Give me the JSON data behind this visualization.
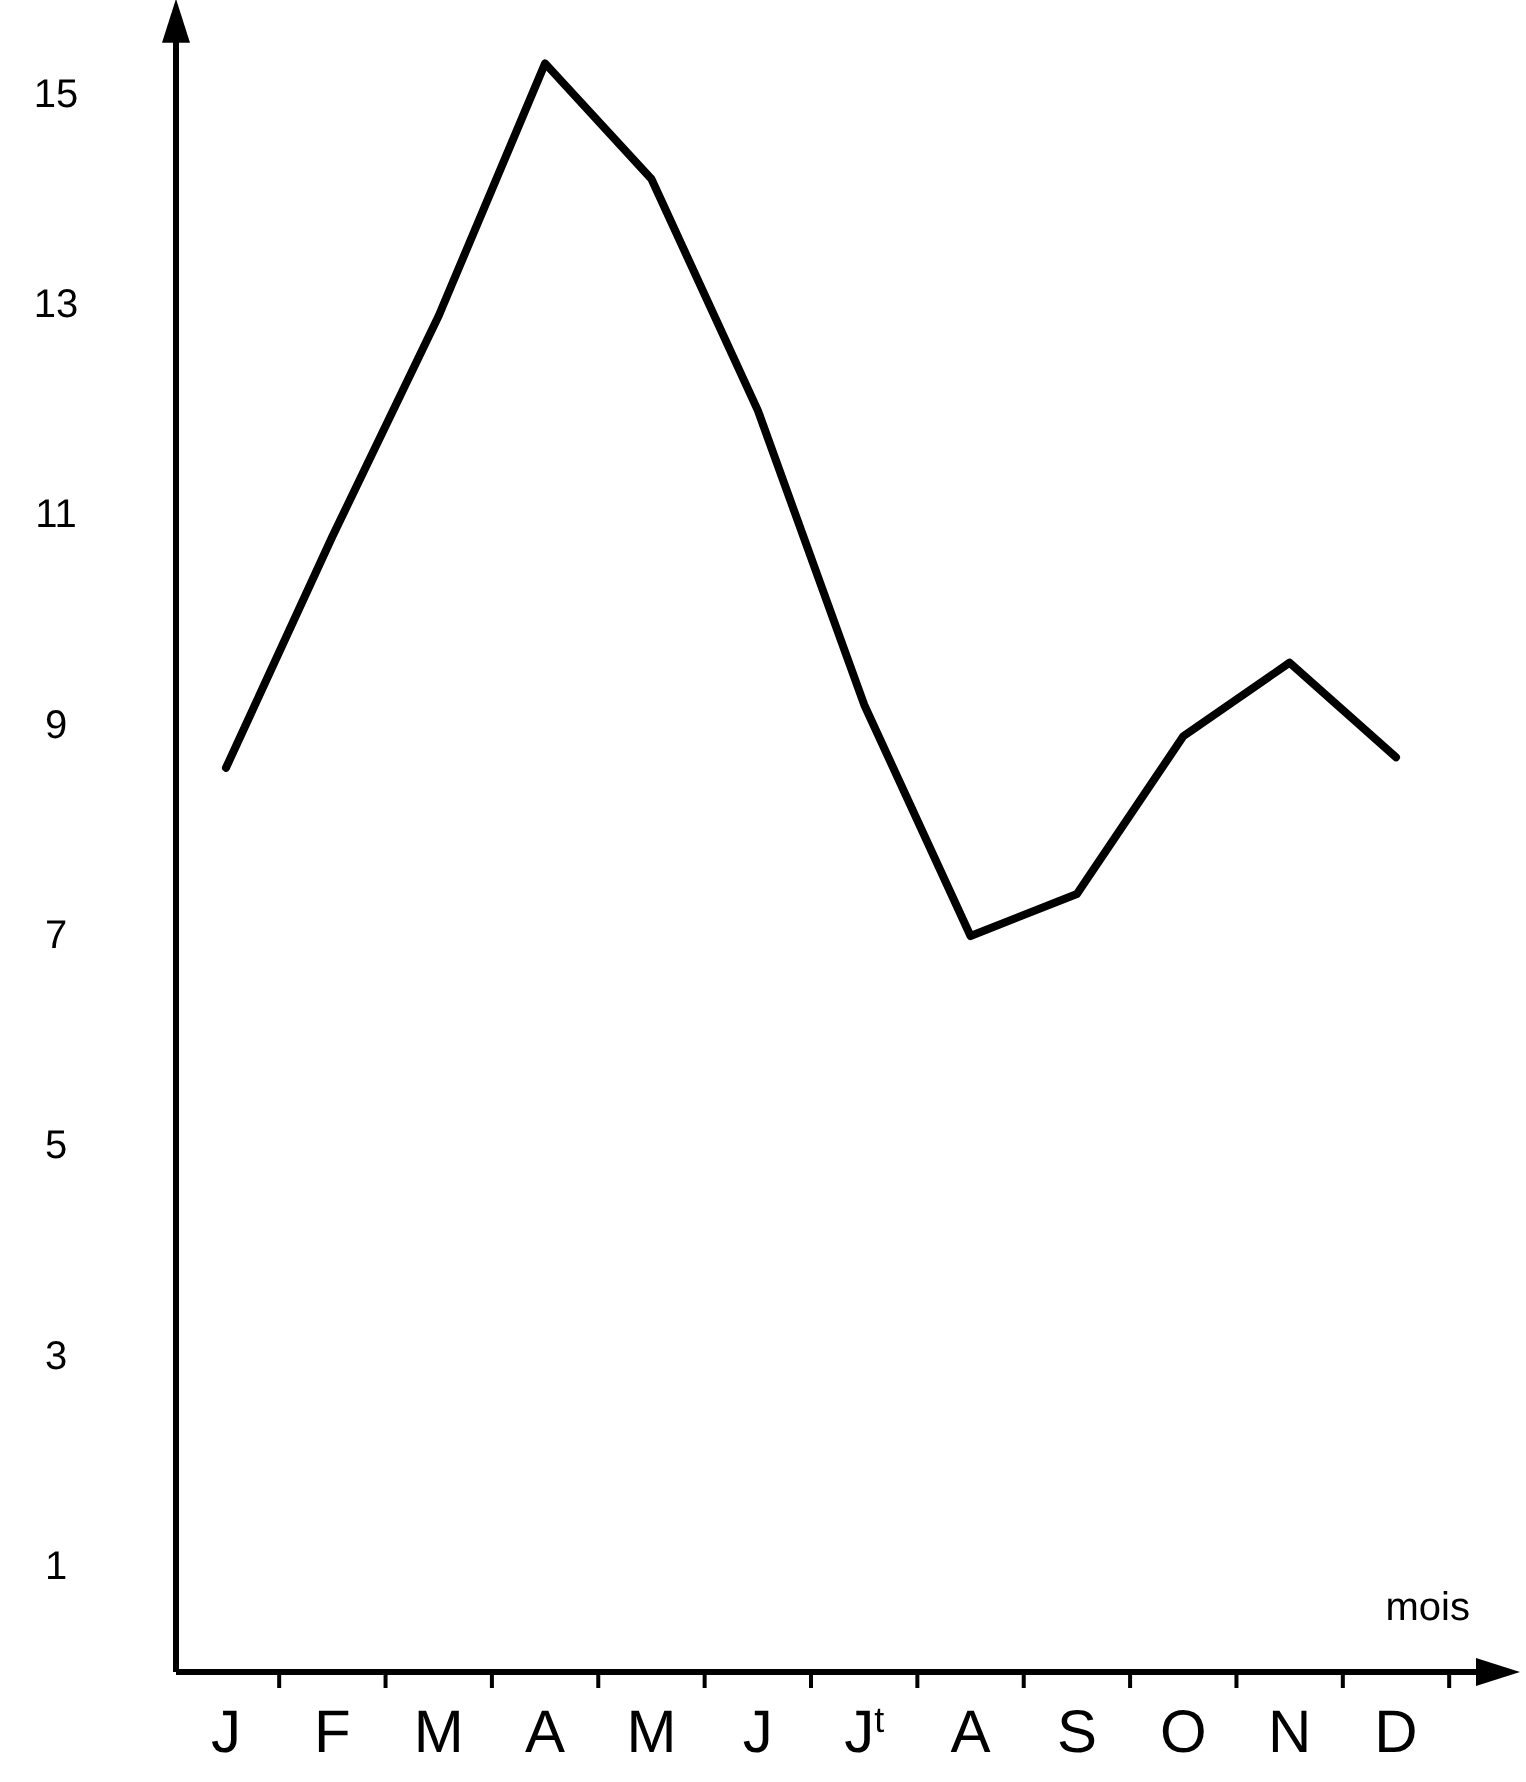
{
  "chart_data": {
    "type": "line",
    "xlabel": "mois",
    "categories": [
      "J",
      "F",
      "M",
      "A",
      "M",
      "J",
      "J$^{t}$",
      "A",
      "S",
      "O",
      "N",
      "D"
    ],
    "series": [
      {
        "color": "#000000",
        "values": [
          8.6,
          10.8,
          12.9,
          15.3,
          14.2,
          12.0,
          9.2,
          7.0,
          7.4,
          8.9,
          9.6,
          8.7
        ]
      }
    ],
    "ylim": [
      0,
      15.8
    ],
    "yticks": [
      1,
      3,
      5,
      7,
      9,
      11,
      13,
      15
    ],
    "grid": false,
    "marker": "none",
    "line_style": "solid"
  }
}
